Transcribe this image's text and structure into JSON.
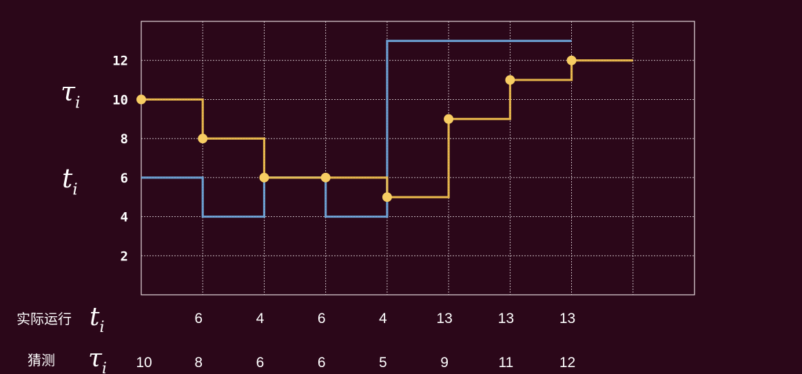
{
  "chart_data": {
    "type": "line",
    "title": "",
    "x": [
      0,
      1,
      2,
      3,
      4,
      5,
      6,
      7,
      8
    ],
    "xlim": [
      0,
      9
    ],
    "ylim": [
      0,
      14
    ],
    "y_ticks": [
      2,
      4,
      6,
      8,
      10,
      12
    ],
    "grid": true,
    "y_axis_labels": {
      "tau": {
        "symbol": "τ",
        "subscript": "i"
      },
      "t": {
        "symbol": "t",
        "subscript": "i"
      }
    },
    "series": [
      {
        "key": "actual",
        "step": "post",
        "color": "#6fa8dc",
        "x": [
          0,
          1,
          2,
          3,
          4,
          5,
          6,
          7
        ],
        "values": [
          6,
          4,
          6,
          4,
          13,
          13,
          13,
          13
        ],
        "end_x": 7
      },
      {
        "key": "guess",
        "step": "post",
        "color": "#f2c14e",
        "marker": "circle",
        "x": [
          0,
          1,
          2,
          3,
          4,
          5,
          6,
          7
        ],
        "values": [
          10,
          8,
          6,
          6,
          5,
          9,
          11,
          12
        ],
        "end_x": 8
      }
    ],
    "table": {
      "rows": [
        {
          "label": "实际运行",
          "symbol": "t",
          "subscript": "i",
          "values": [
            "6",
            "4",
            "6",
            "4",
            "13",
            "13",
            "13"
          ],
          "x": [
            1,
            2,
            3,
            4,
            5,
            6,
            7
          ]
        },
        {
          "label": "猜测",
          "symbol": "τ",
          "subscript": "i",
          "values": [
            "10",
            "8",
            "6",
            "6",
            "5",
            "9",
            "11",
            "12"
          ],
          "x": [
            0,
            1,
            2,
            3,
            4,
            5,
            6,
            7
          ]
        }
      ]
    }
  }
}
